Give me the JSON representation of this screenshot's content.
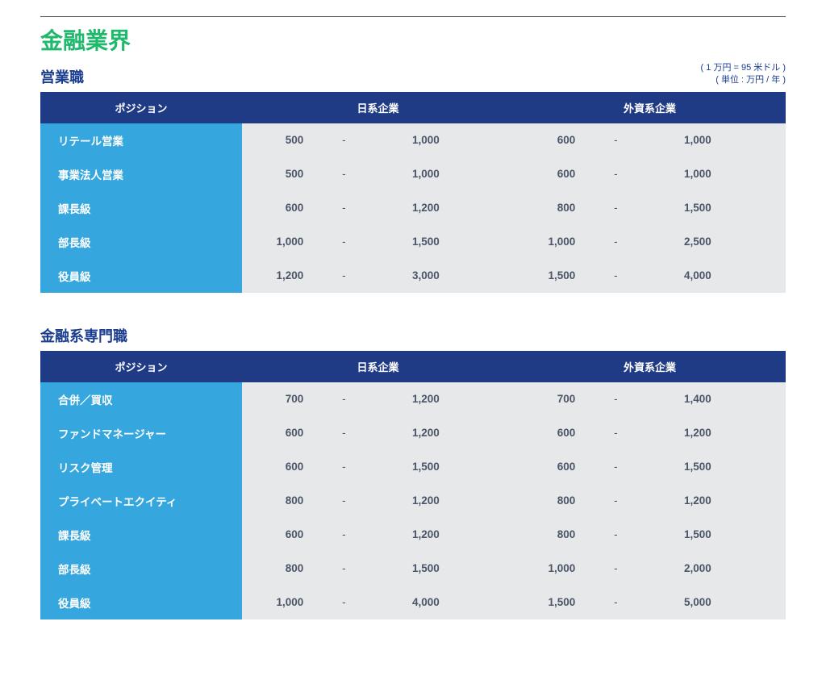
{
  "colors": {
    "title": "#1fb86c",
    "subtitle": "#1a3d8f",
    "unit_note": "#1a3d8f",
    "header_bg": "#203b85",
    "row_label_bg": "#35a7de",
    "row_value_bg": "#e7e8e9",
    "row_value_text": "#4a5568",
    "dash_text": "#4a5568"
  },
  "page_title": "金融業界",
  "unit_note_line1": "( 1 万円 = 95 米ドル )",
  "unit_note_line2": "( 単位 : 万円 / 年 )",
  "columns": {
    "position": "ポジション",
    "domestic": "日系企業",
    "foreign": "外資系企業"
  },
  "dash": "-",
  "sections": [
    {
      "title": "営業職",
      "show_unit_note": true,
      "rows": [
        {
          "label": "リテール営業",
          "d_lo": "500",
          "d_hi": "1,000",
          "f_lo": "600",
          "f_hi": "1,000"
        },
        {
          "label": "事業法人営業",
          "d_lo": "500",
          "d_hi": "1,000",
          "f_lo": "600",
          "f_hi": "1,000"
        },
        {
          "label": "課長級",
          "d_lo": "600",
          "d_hi": "1,200",
          "f_lo": "800",
          "f_hi": "1,500"
        },
        {
          "label": "部長級",
          "d_lo": "1,000",
          "d_hi": "1,500",
          "f_lo": "1,000",
          "f_hi": "2,500"
        },
        {
          "label": "役員級",
          "d_lo": "1,200",
          "d_hi": "3,000",
          "f_lo": "1,500",
          "f_hi": "4,000"
        }
      ]
    },
    {
      "title": "金融系専門職",
      "show_unit_note": false,
      "rows": [
        {
          "label": "合併／買収",
          "d_lo": "700",
          "d_hi": "1,200",
          "f_lo": "700",
          "f_hi": "1,400"
        },
        {
          "label": "ファンドマネージャー",
          "d_lo": "600",
          "d_hi": "1,200",
          "f_lo": "600",
          "f_hi": "1,200"
        },
        {
          "label": "リスク管理",
          "d_lo": "600",
          "d_hi": "1,500",
          "f_lo": "600",
          "f_hi": "1,500"
        },
        {
          "label": "プライベートエクイティ",
          "d_lo": "800",
          "d_hi": "1,200",
          "f_lo": "800",
          "f_hi": "1,200"
        },
        {
          "label": "課長級",
          "d_lo": "600",
          "d_hi": "1,200",
          "f_lo": "800",
          "f_hi": "1,500"
        },
        {
          "label": "部長級",
          "d_lo": "800",
          "d_hi": "1,500",
          "f_lo": "1,000",
          "f_hi": "2,000"
        },
        {
          "label": "役員級",
          "d_lo": "1,000",
          "d_hi": "4,000",
          "f_lo": "1,500",
          "f_hi": "5,000"
        }
      ]
    }
  ]
}
